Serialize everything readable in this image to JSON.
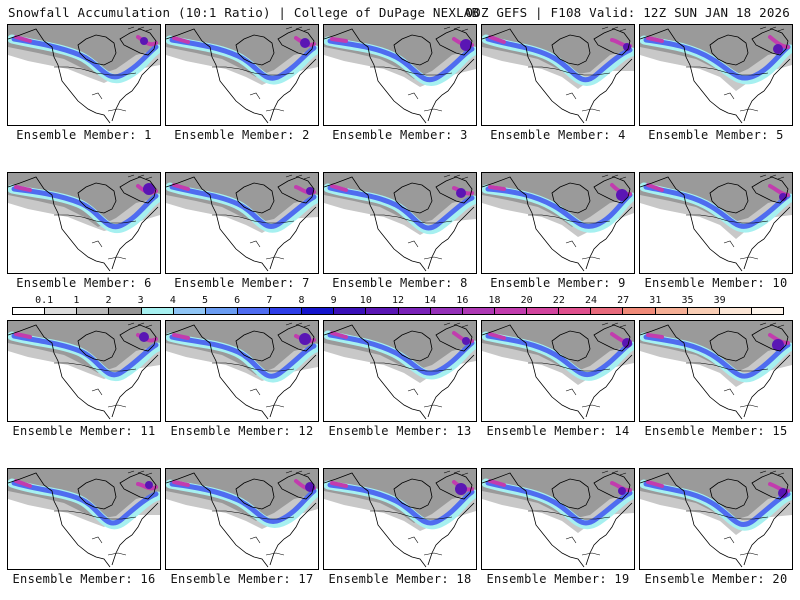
{
  "header": {
    "title_left": "Snowfall Accumulation (10:1 Ratio) | College of DuPage NEXLAB",
    "title_right": "00Z GEFS | F108 Valid: 12Z SUN JAN 18 2026"
  },
  "panels": [
    {
      "label": "Ensemble Member: 1"
    },
    {
      "label": "Ensemble Member: 2"
    },
    {
      "label": "Ensemble Member: 3"
    },
    {
      "label": "Ensemble Member: 4"
    },
    {
      "label": "Ensemble Member: 5"
    },
    {
      "label": "Ensemble Member: 6"
    },
    {
      "label": "Ensemble Member: 7"
    },
    {
      "label": "Ensemble Member: 8"
    },
    {
      "label": "Ensemble Member: 9"
    },
    {
      "label": "Ensemble Member: 10"
    },
    {
      "label": "Ensemble Member: 11"
    },
    {
      "label": "Ensemble Member: 12"
    },
    {
      "label": "Ensemble Member: 13"
    },
    {
      "label": "Ensemble Member: 14"
    },
    {
      "label": "Ensemble Member: 15"
    },
    {
      "label": "Ensemble Member: 16"
    },
    {
      "label": "Ensemble Member: 17"
    },
    {
      "label": "Ensemble Member: 18"
    },
    {
      "label": "Ensemble Member: 19"
    },
    {
      "label": "Ensemble Member: 20"
    }
  ],
  "colorbar": {
    "ticks": [
      "0.1",
      "1",
      "2",
      "3",
      "4",
      "5",
      "6",
      "7",
      "8",
      "9",
      "10",
      "12",
      "14",
      "16",
      "18",
      "20",
      "22",
      "24",
      "27",
      "31",
      "35",
      "39"
    ],
    "colors": [
      "#ffffff",
      "#dcdcdc",
      "#b9b9b9",
      "#969696",
      "#a6f0f0",
      "#8fc5f5",
      "#6a9cf2",
      "#4f6cf0",
      "#2e3ee8",
      "#1414cc",
      "#3a10b8",
      "#5a16b4",
      "#7a22b8",
      "#9530b8",
      "#ae38b4",
      "#c23cae",
      "#d2449e",
      "#e0508e",
      "#e86a7c",
      "#f08a78",
      "#f5ae94",
      "#f9cdb4",
      "#fce6d6",
      "#fff5ec"
    ]
  }
}
